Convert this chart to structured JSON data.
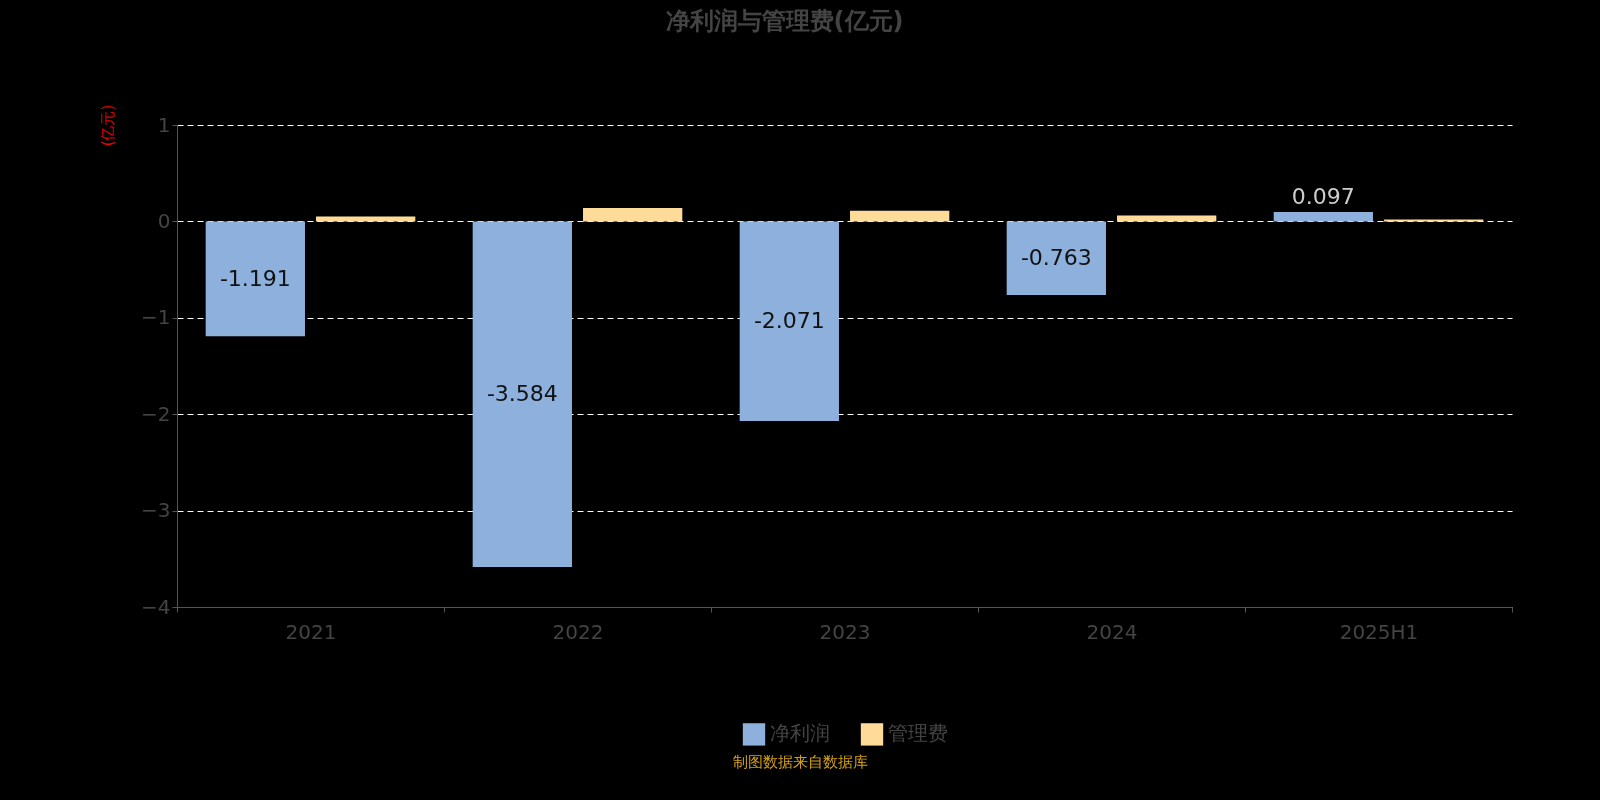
{
  "chart_data": {
    "type": "bar",
    "title": "净利润与管理费(亿元)",
    "ylabel": "(亿元)",
    "categories": [
      "2021",
      "2022",
      "2023",
      "2024",
      "2025H1"
    ],
    "series": [
      {
        "name": "净利润",
        "color": "#8eb0dc",
        "values": [
          -1.191,
          -3.584,
          -2.071,
          -0.763,
          0.097
        ],
        "value_labels": [
          "-1.191",
          "-3.584",
          "-2.071",
          "-0.763",
          "0.097"
        ]
      },
      {
        "name": "管理费",
        "color": "#ffdb99",
        "values": [
          0.05,
          0.14,
          0.11,
          0.06,
          0.02
        ]
      }
    ],
    "ylim": [
      -4,
      1
    ],
    "yticks": [
      -4,
      -3,
      -2,
      -1,
      0,
      1
    ],
    "grid": "y",
    "legend": "bottom",
    "annotations": [
      "制图数据来自数据库"
    ]
  }
}
